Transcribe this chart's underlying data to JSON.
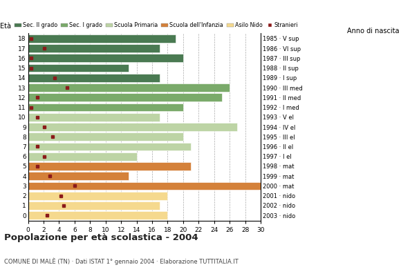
{
  "ages": [
    18,
    17,
    16,
    15,
    14,
    13,
    12,
    11,
    10,
    9,
    8,
    7,
    6,
    5,
    4,
    3,
    2,
    1,
    0
  ],
  "years": [
    "1985 · V sup",
    "1986 · VI sup",
    "1987 · III sup",
    "1988 · II sup",
    "1989 · I sup",
    "1990 · III med",
    "1991 · II med",
    "1992 · I med",
    "1993 · V el",
    "1994 · IV el",
    "1995 · III el",
    "1996 · II el",
    "1997 · I el",
    "1998 · mat",
    "1999 · mat",
    "2000 · mat",
    "2001 · nido",
    "2002 · nido",
    "2003 · nido"
  ],
  "bar_values": [
    19,
    17,
    20,
    13,
    17,
    26,
    25,
    20,
    17,
    27,
    20,
    21,
    14,
    21,
    13,
    30,
    18,
    17,
    18
  ],
  "bar_colors": [
    "#4a7a52",
    "#4a7a52",
    "#4a7a52",
    "#4a7a52",
    "#4a7a52",
    "#7aaa6a",
    "#7aaa6a",
    "#7aaa6a",
    "#bdd4a5",
    "#bdd4a5",
    "#bdd4a5",
    "#bdd4a5",
    "#bdd4a5",
    "#d4813a",
    "#d4813a",
    "#d4813a",
    "#f5d98e",
    "#f5d98e",
    "#f5d98e"
  ],
  "stranieri_x": [
    0.4,
    2.1,
    0.4,
    0.4,
    3.4,
    5.0,
    1.2,
    0.4,
    1.2,
    2.1,
    3.2,
    1.2,
    2.1,
    1.2,
    2.8,
    6.0,
    4.2,
    4.6,
    2.4
  ],
  "legend_labels": [
    "Sec. II grado",
    "Sec. I grado",
    "Scuola Primaria",
    "Scuola dell'Infanzia",
    "Asilo Nido",
    "Stranieri"
  ],
  "legend_colors": [
    "#4a7a52",
    "#7aaa6a",
    "#bdd4a5",
    "#d4813a",
    "#f5d98e",
    "#8b1a1a"
  ],
  "title": "Popolazione per età scolastica - 2004",
  "subtitle": "COMUNE DI MALÈ (TN) · Dati ISTAT 1° gennaio 2004 · Elaborazione TUTTITALIA.IT",
  "xlabel_eta": "Età",
  "xlabel_anno": "Anno di nascita",
  "xlim": [
    0,
    30
  ],
  "xticks": [
    0,
    2,
    4,
    6,
    8,
    10,
    12,
    14,
    16,
    18,
    20,
    22,
    24,
    26,
    28,
    30
  ],
  "bg_color": "#ffffff",
  "bar_height": 0.82
}
